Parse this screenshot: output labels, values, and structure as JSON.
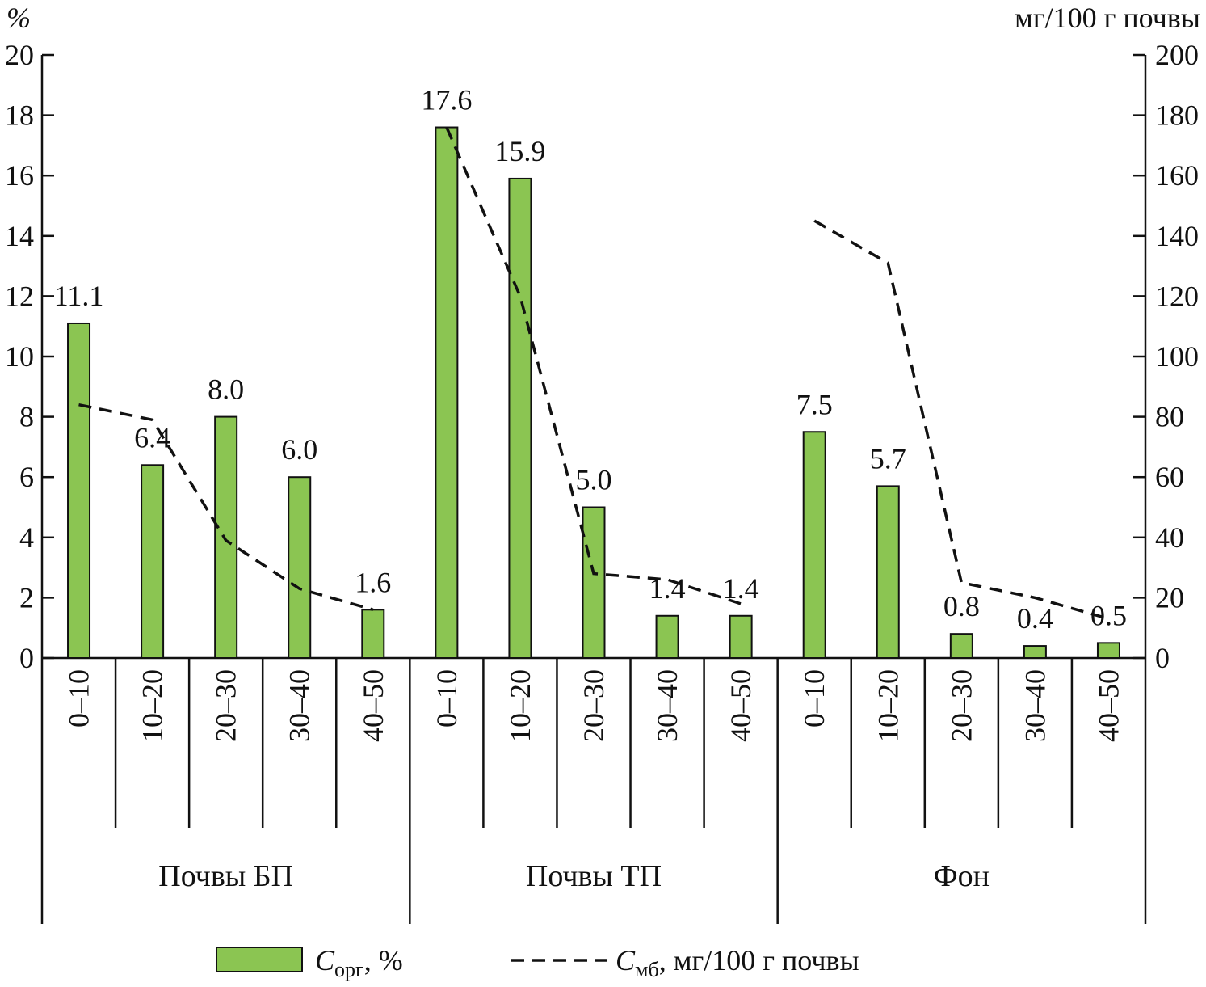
{
  "chart_data": {
    "type": "bar",
    "title": "",
    "left_axis": {
      "unit": "%",
      "ylim": [
        0,
        20
      ],
      "ticks": [
        0,
        2,
        4,
        6,
        8,
        10,
        12,
        14,
        16,
        18,
        20
      ]
    },
    "right_axis": {
      "unit": "мг/100 г почвы",
      "ylim": [
        0,
        200
      ],
      "ticks": [
        0,
        20,
        40,
        60,
        80,
        100,
        120,
        140,
        160,
        180,
        200
      ]
    },
    "groups": [
      {
        "name": "Почвы БП",
        "depths": [
          "0–10",
          "10–20",
          "20–30",
          "30–40",
          "40–50"
        ]
      },
      {
        "name": "Почвы ТП",
        "depths": [
          "0–10",
          "10–20",
          "20–30",
          "30–40",
          "40–50"
        ]
      },
      {
        "name": "Фон",
        "depths": [
          "0–10",
          "10–20",
          "20–30",
          "30–40",
          "40–50"
        ]
      }
    ],
    "series": [
      {
        "name_main": "C",
        "name_sub": "орг",
        "name_suffix": ", %",
        "kind": "bar",
        "axis": "left",
        "color": "#8bc552",
        "values": [
          11.1,
          6.4,
          8.0,
          6.0,
          1.6,
          17.6,
          15.9,
          5.0,
          1.4,
          1.4,
          7.5,
          5.7,
          0.8,
          0.4,
          0.5
        ],
        "labels": [
          "11.1",
          "6.4",
          "8.0",
          "6.0",
          "1.6",
          "17.6",
          "15.9",
          "5.0",
          "1.4",
          "1.4",
          "7.5",
          "5.7",
          "0.8",
          "0.4",
          "0.5"
        ]
      },
      {
        "name_main": "C",
        "name_sub": "мб",
        "name_suffix": ", мг/100 г почвы",
        "kind": "line",
        "style": "dashed",
        "axis": "right",
        "color": "#111111",
        "values": [
          84,
          79,
          39,
          23,
          16,
          176,
          120,
          28,
          26,
          18,
          145,
          131,
          25,
          20,
          13
        ]
      }
    ],
    "legend_position": "bottom",
    "grid": false
  }
}
